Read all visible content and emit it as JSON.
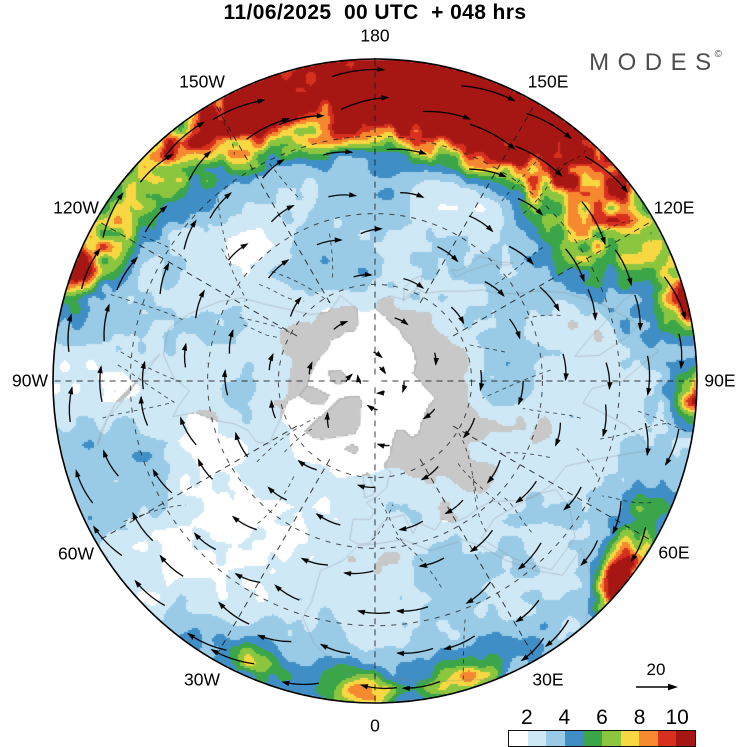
{
  "title": "11/06/2025  00 UTC  + 048 hrs",
  "logo": {
    "text": "MODES",
    "mark": "©"
  },
  "map": {
    "longitude_labels": [
      {
        "label": "180",
        "angle": 0
      },
      {
        "label": "150E",
        "angle": 30
      },
      {
        "label": "120E",
        "angle": 60
      },
      {
        "label": "90E",
        "angle": 90
      },
      {
        "label": "60E",
        "angle": 120
      },
      {
        "label": "30E",
        "angle": 150
      },
      {
        "label": "0",
        "angle": 180
      },
      {
        "label": "30W",
        "angle": 210
      },
      {
        "label": "60W",
        "angle": 240
      },
      {
        "label": "90W",
        "angle": 270
      },
      {
        "label": "120W",
        "angle": 300
      },
      {
        "label": "150W",
        "angle": 330
      }
    ],
    "land_color": "#c8c8c8",
    "ocean_color": "#ffffff",
    "graticule": {
      "latitude_circle_radii": [
        0.3,
        0.52,
        0.76
      ],
      "meridian_step_deg": 30
    },
    "field_features": [
      {
        "a": 12,
        "r": 0.97,
        "sa": 34,
        "sr": 0.1,
        "amp": 8.5
      },
      {
        "a": 28,
        "r": 0.88,
        "sa": 22,
        "sr": 0.09,
        "amp": 5.5
      },
      {
        "a": -18,
        "r": 0.93,
        "sa": 14,
        "sr": 0.08,
        "amp": 4.0
      },
      {
        "a": 8,
        "r": 0.78,
        "sa": 30,
        "sr": 0.055,
        "amp": 3.2
      },
      {
        "a": -38,
        "r": 0.95,
        "sa": 12,
        "sr": 0.06,
        "amp": 2.6
      },
      {
        "a": -69,
        "r": 1.0,
        "sa": 4.5,
        "sr": 0.05,
        "amp": 7.5
      },
      {
        "a": -62,
        "r": 0.9,
        "sa": 5,
        "sr": 0.05,
        "amp": 3.0
      },
      {
        "a": 75,
        "r": 1.0,
        "sa": 3.5,
        "sr": 0.045,
        "amp": 6.0
      },
      {
        "a": 93,
        "r": 1.0,
        "sa": 3,
        "sr": 0.05,
        "amp": 5.5
      },
      {
        "a": 129,
        "r": 0.985,
        "sa": 4,
        "sr": 0.035,
        "amp": 9.0
      },
      {
        "a": 122,
        "r": 0.93,
        "sa": 7,
        "sr": 0.05,
        "amp": 3.2
      },
      {
        "a": 160,
        "r": 0.95,
        "sa": 7,
        "sr": 0.05,
        "amp": 4.2
      },
      {
        "a": 182,
        "r": 0.96,
        "sa": 5,
        "sr": 0.05,
        "amp": 4.8
      },
      {
        "a": 203,
        "r": 0.95,
        "sa": 5,
        "sr": 0.045,
        "amp": 3.4
      },
      {
        "a": 57,
        "r": 0.7,
        "sa": 9,
        "sr": 0.07,
        "amp": 1.8
      },
      {
        "a": -110,
        "r": 0.75,
        "sa": 8,
        "sr": 0.07,
        "amp": 1.6
      },
      {
        "a": 240,
        "r": 0.72,
        "sa": 22,
        "sr": 0.14,
        "amp": -1.1
      },
      {
        "a": 0,
        "r": 0.3,
        "sa": 45,
        "sr": 0.12,
        "amp": 0.9
      },
      {
        "a": 215,
        "r": 0.33,
        "sa": 40,
        "sr": 0.14,
        "amp": -0.8
      }
    ]
  },
  "colorbar": {
    "tick_labels": [
      "2",
      "4",
      "6",
      "8",
      "10"
    ],
    "tick_positions": [
      0.1,
      0.3,
      0.5,
      0.7,
      0.9
    ],
    "segment_colors": [
      "#ffffff",
      "#cfe8f6",
      "#99cbe6",
      "#3f8fc6",
      "#3ba54a",
      "#8cc63f",
      "#f7d843",
      "#f6882f",
      "#d7301f",
      "#a61713"
    ]
  },
  "reference_vector": {
    "label": "20"
  }
}
